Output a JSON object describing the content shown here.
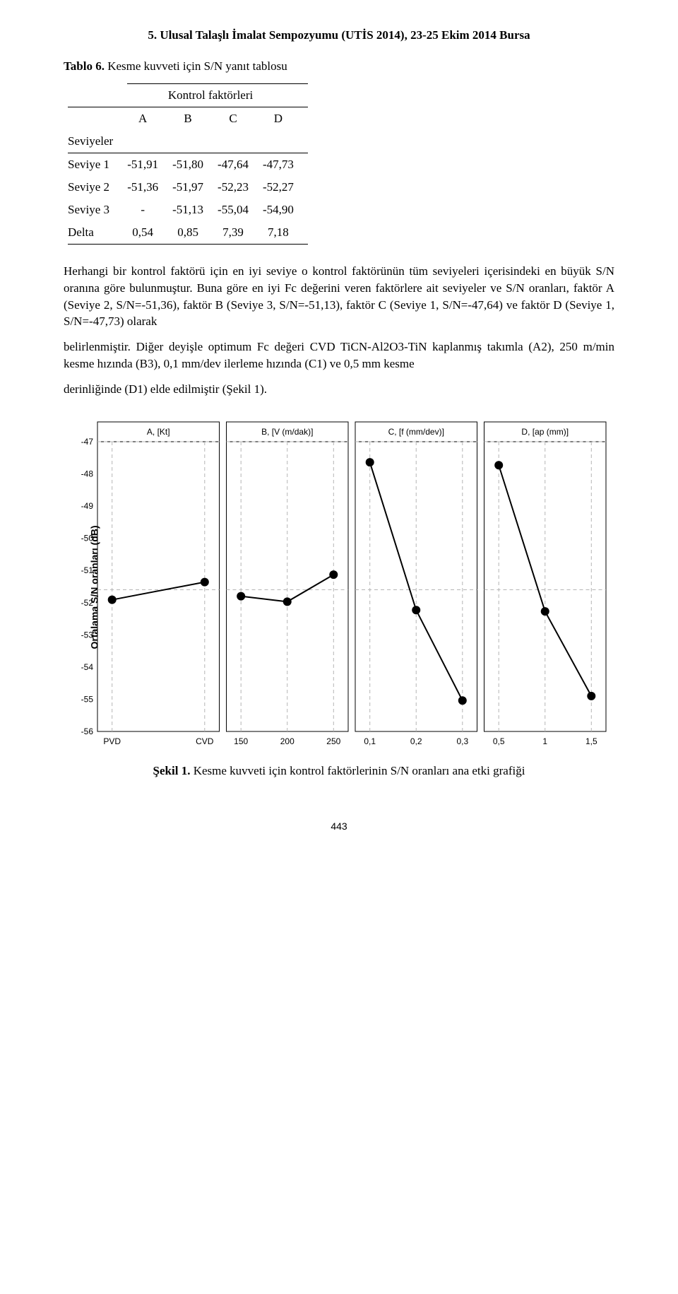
{
  "header": {
    "title": "5. Ulusal Talaşlı İmalat Sempozyumu (UTİS 2014), 23-25 Ekim 2014 Bursa"
  },
  "table": {
    "caption_bold": "Tablo 6.",
    "caption_rest": " Kesme kuvveti için S/N yanıt tablosu",
    "overhead": "Kontrol faktörleri",
    "col_headers": [
      "A",
      "B",
      "C",
      "D"
    ],
    "row_header_label": "Seviyeler",
    "rows": [
      {
        "label": "Seviye 1",
        "v": [
          "-51,91",
          "-51,80",
          "-47,64",
          "-47,73"
        ]
      },
      {
        "label": "Seviye 2",
        "v": [
          "-51,36",
          "-51,97",
          "-52,23",
          "-52,27"
        ]
      },
      {
        "label": "Seviye 3",
        "v": [
          "-",
          "-51,13",
          "-55,04",
          "-54,90"
        ]
      },
      {
        "label": "Delta",
        "v": [
          "0,54",
          "0,85",
          "7,39",
          "7,18"
        ]
      }
    ]
  },
  "para1": "Herhangi bir kontrol faktörü için en iyi seviye o kontrol faktörünün tüm seviyeleri içerisindeki en büyük S/N oranına göre bulunmuştur. Buna göre en iyi Fc değerini veren faktörlere ait seviyeler ve S/N oranları, faktör A (Seviye 2, S/N=-51,36), faktör B (Seviye 3, S/N=-51,13), faktör C (Seviye 1, S/N=-47,64) ve faktör D (Seviye 1, S/N=-47,73) olarak",
  "para2": "belirlenmiştir. Diğer deyişle optimum Fc değeri CVD TiCN-Al2O3-TiN kaplanmış takımla (A2), 250 m/min kesme hızında (B3), 0,1 mm/dev ilerleme hızında (C1) ve 0,5 mm kesme",
  "para3": "derinliğinde (D1) elde edilmiştir (Şekil 1).",
  "figure": {
    "type": "line-panel",
    "y_label": "Ortalama S/N oranları (dB)",
    "panels": [
      {
        "title": "A, [Kt]",
        "ticks": [
          "PVD",
          "CVD"
        ],
        "values": [
          -51.91,
          -51.36
        ]
      },
      {
        "title": "B, [V (m/dak)]",
        "ticks": [
          "150",
          "200",
          "250"
        ],
        "values": [
          -51.8,
          -51.97,
          -51.13
        ]
      },
      {
        "title": "C, [f (mm/dev)]",
        "ticks": [
          "0,1",
          "0,2",
          "0,3"
        ],
        "values": [
          -47.64,
          -52.23,
          -55.04
        ]
      },
      {
        "title": "D, [ap (mm)]",
        "ticks": [
          "0,5",
          "1",
          "1,5"
        ],
        "values": [
          -47.73,
          -52.27,
          -54.9
        ]
      }
    ],
    "ylim": [
      -56,
      -47
    ],
    "yticks": [
      -47,
      -48,
      -49,
      -50,
      -51,
      -52,
      -53,
      -54,
      -55,
      -56
    ],
    "style": {
      "background_color": "#ffffff",
      "grid_color": "#b5b5b5",
      "y_grid_major_values": [
        -47,
        -51.6
      ],
      "grid_dash": "5,4",
      "panel_border_color": "#000000",
      "panel_border_width": 1,
      "marker_color": "#000000",
      "line_color": "#000000",
      "line_width": 2,
      "marker_radius": 6,
      "title_fontsize": 12,
      "tick_fontsize": 12,
      "font_family": "Arial"
    },
    "caption_bold": "Şekil 1.",
    "caption_rest": " Kesme kuvveti için kontrol faktörlerinin S/N oranları ana etki grafiği"
  },
  "page_number": "443"
}
